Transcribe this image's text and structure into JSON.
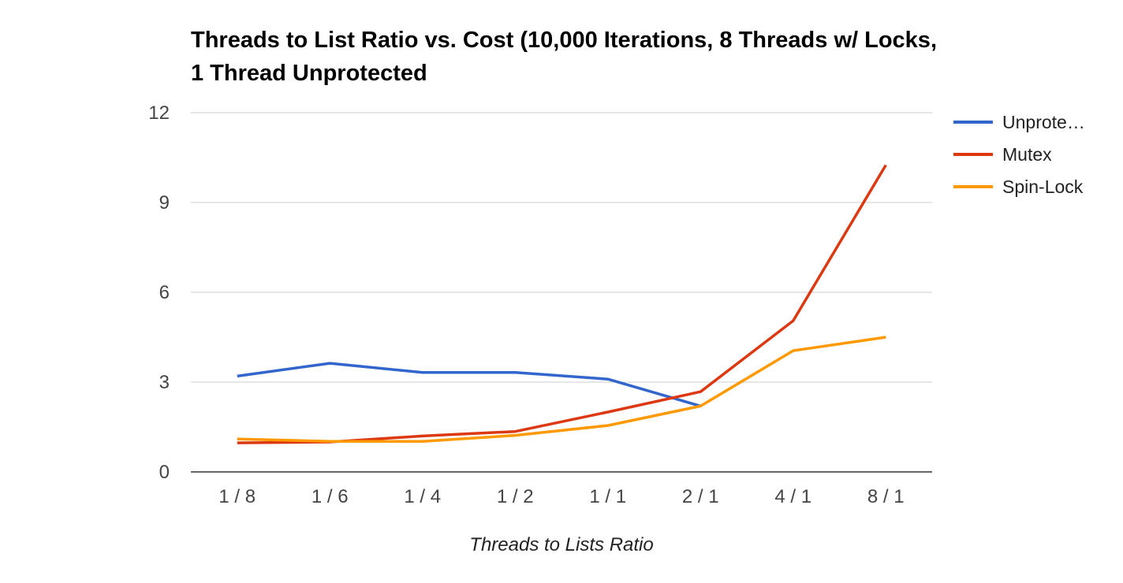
{
  "chart_data": {
    "type": "line",
    "title": "Threads to List Ratio vs. Cost (10,000 Iterations, 8 Threads w/ Locks, 1 Thread Unprotected",
    "xlabel": "Threads to Lists Ratio",
    "ylabel": "",
    "ylim": [
      0,
      12
    ],
    "yticks": [
      0,
      3,
      6,
      9,
      12
    ],
    "grid": true,
    "legend_position": "right",
    "categories": [
      "1 / 8",
      "1 / 6",
      "1 / 4",
      "1 / 2",
      "1 / 1",
      "2 / 1",
      "4 / 1",
      "8 / 1"
    ],
    "series": [
      {
        "name": "Unprote…",
        "color": "#3366cc",
        "values": [
          3.2,
          3.63,
          3.32,
          3.32,
          3.1,
          2.2,
          null,
          null
        ]
      },
      {
        "name": "Mutex",
        "color": "#dc3912",
        "values": [
          0.97,
          1.0,
          1.2,
          1.35,
          2.0,
          2.68,
          5.05,
          10.25
        ]
      },
      {
        "name": "Spin-Lock",
        "color": "#ff9900",
        "values": [
          1.1,
          1.02,
          1.02,
          1.22,
          1.55,
          2.2,
          4.05,
          4.5
        ]
      }
    ]
  }
}
